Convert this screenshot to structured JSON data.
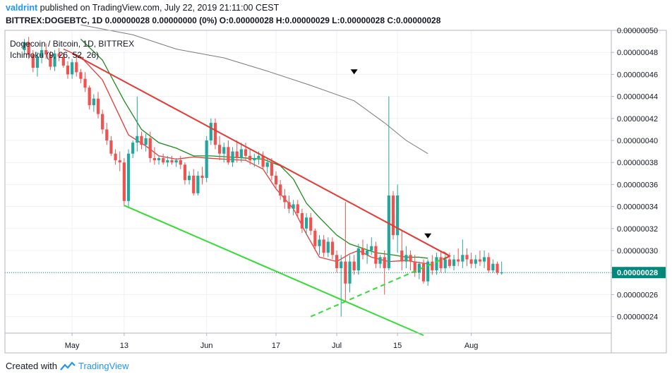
{
  "header": {
    "username": "valdrint",
    "published_text": "published on TradingView.com, July 22, 2019 21:11:00 CEST",
    "ohlc_text": "BITTREX:DOGEBTC, 1D  0.00000028  0.00000000 (0%)  O:0.00000028  H:0.00000029  L:0.00000028  C:0.00000028"
  },
  "footer": {
    "created_with": "Created with",
    "brand": "TradingView"
  },
  "colors": {
    "up": "#26a69a",
    "down": "#ef5350",
    "trend_red": "#e53935",
    "trend_green": "#33dd33",
    "ma_green": "#1b8a1b",
    "ma_red": "#e53935",
    "ma_gray": "#7a7a7a",
    "current_price_tag": "#00897b"
  },
  "chart_data": {
    "type": "candlestick",
    "title": "Dogecoin / Bitcoin, 1D, BITTREX",
    "indicator_label": "Ichimoku (9, 26, 52, 26)",
    "y_ticks": [
      "0.00000050",
      "0.00000048",
      "0.00000046",
      "0.00000044",
      "0.00000042",
      "0.00000040",
      "0.00000038",
      "0.00000036",
      "0.00000034",
      "0.00000032",
      "0.00000030",
      "0.00000028",
      "0.00000026",
      "0.00000024"
    ],
    "x_ticks": [
      "May",
      "13",
      "Jun",
      "17",
      "Jul",
      "15",
      "Aug"
    ],
    "current_price": "0.00000028",
    "ylim": [
      2.25e-07,
      5e-07
    ],
    "start_date": "2019-04-20",
    "candles": [
      [
        4.82e-07,
        4.92e-07,
        4.78e-07,
        4.89e-07
      ],
      [
        4.89e-07,
        4.94e-07,
        4.74e-07,
        4.78e-07
      ],
      [
        4.78e-07,
        4.82e-07,
        4.62e-07,
        4.66e-07
      ],
      [
        4.66e-07,
        4.8e-07,
        4.58e-07,
        4.76e-07
      ],
      [
        4.76e-07,
        4.86e-07,
        4.7e-07,
        4.82e-07
      ],
      [
        4.82e-07,
        4.88e-07,
        4.74e-07,
        4.78e-07
      ],
      [
        4.78e-07,
        4.81e-07,
        4.64e-07,
        4.67e-07
      ],
      [
        4.67e-07,
        4.82e-07,
        4.63e-07,
        4.79e-07
      ],
      [
        4.79e-07,
        4.84e-07,
        4.72e-07,
        4.76e-07
      ],
      [
        4.76e-07,
        4.8e-07,
        4.66e-07,
        4.68e-07
      ],
      [
        4.68e-07,
        4.72e-07,
        4.56e-07,
        4.6e-07
      ],
      [
        4.6e-07,
        4.74e-07,
        4.56e-07,
        4.71e-07
      ],
      [
        4.71e-07,
        4.76e-07,
        4.58e-07,
        4.62e-07
      ],
      [
        4.62e-07,
        4.65e-07,
        4.52e-07,
        4.56e-07
      ],
      [
        4.56e-07,
        4.62e-07,
        4.44e-07,
        4.48e-07
      ],
      [
        4.48e-07,
        4.5e-07,
        4.28e-07,
        4.32e-07
      ],
      [
        4.32e-07,
        4.42e-07,
        4.26e-07,
        4.38e-07
      ],
      [
        4.38e-07,
        4.44e-07,
        4.2e-07,
        4.24e-07
      ],
      [
        4.24e-07,
        4.28e-07,
        4.06e-07,
        4.1e-07
      ],
      [
        4.1e-07,
        4.16e-07,
        3.96e-07,
        4e-07
      ],
      [
        4e-07,
        4.04e-07,
        3.86e-07,
        3.88e-07
      ],
      [
        3.88e-07,
        3.92e-07,
        3.78e-07,
        3.82e-07
      ],
      [
        3.82e-07,
        3.9e-07,
        3.72e-07,
        3.8e-07
      ],
      [
        3.8e-07,
        3.84e-07,
        3.4e-07,
        3.45e-07
      ],
      [
        3.45e-07,
        3.92e-07,
        3.4e-07,
        3.88e-07
      ],
      [
        3.88e-07,
        4e-07,
        3.84e-07,
        3.98e-07
      ],
      [
        3.98e-07,
        4.4e-07,
        3.9e-07,
        4.04e-07
      ],
      [
        4.04e-07,
        4.08e-07,
        3.92e-07,
        3.96e-07
      ],
      [
        3.96e-07,
        4.06e-07,
        3.9e-07,
        4.02e-07
      ],
      [
        4.02e-07,
        4.08e-07,
        3.8e-07,
        3.84e-07
      ],
      [
        3.84e-07,
        3.94e-07,
        3.78e-07,
        3.82e-07
      ],
      [
        3.82e-07,
        3.86e-07,
        3.78e-07,
        3.84e-07
      ],
      [
        3.84e-07,
        3.88e-07,
        3.78e-07,
        3.8e-07
      ],
      [
        3.8e-07,
        3.86e-07,
        3.76e-07,
        3.82e-07
      ],
      [
        3.82e-07,
        3.86e-07,
        3.78e-07,
        3.8e-07
      ],
      [
        3.8e-07,
        3.84e-07,
        3.76e-07,
        3.82e-07
      ],
      [
        3.82e-07,
        3.86e-07,
        3.74e-07,
        3.78e-07
      ],
      [
        3.78e-07,
        3.8e-07,
        3.6e-07,
        3.64e-07
      ],
      [
        3.64e-07,
        3.72e-07,
        3.6e-07,
        3.68e-07
      ],
      [
        3.68e-07,
        3.74e-07,
        3.5e-07,
        3.52e-07
      ],
      [
        3.52e-07,
        3.72e-07,
        3.5e-07,
        3.68e-07
      ],
      [
        3.68e-07,
        3.76e-07,
        3.6e-07,
        3.66e-07
      ],
      [
        3.66e-07,
        4.04e-07,
        3.62e-07,
        4e-07
      ],
      [
        4e-07,
        4.2e-07,
        3.96e-07,
        4.16e-07
      ],
      [
        4.16e-07,
        4.2e-07,
        3.92e-07,
        3.96e-07
      ],
      [
        3.96e-07,
        4.04e-07,
        3.82e-07,
        3.88e-07
      ],
      [
        3.88e-07,
        3.98e-07,
        3.8e-07,
        3.94e-07
      ],
      [
        3.94e-07,
        4e-07,
        3.78e-07,
        3.8e-07
      ],
      [
        3.8e-07,
        3.94e-07,
        3.76e-07,
        3.9e-07
      ],
      [
        3.9e-07,
        4e-07,
        3.8e-07,
        3.84e-07
      ],
      [
        3.84e-07,
        3.98e-07,
        3.8e-07,
        3.92e-07
      ],
      [
        3.92e-07,
        3.98e-07,
        3.82e-07,
        3.86e-07
      ],
      [
        3.86e-07,
        3.92e-07,
        3.78e-07,
        3.82e-07
      ],
      [
        3.82e-07,
        3.88e-07,
        3.76e-07,
        3.84e-07
      ],
      [
        3.84e-07,
        3.9e-07,
        3.78e-07,
        3.86e-07
      ],
      [
        3.86e-07,
        3.9e-07,
        3.74e-07,
        3.76e-07
      ],
      [
        3.76e-07,
        3.84e-07,
        3.7e-07,
        3.8e-07
      ],
      [
        3.8e-07,
        3.84e-07,
        3.64e-07,
        3.68e-07
      ],
      [
        3.68e-07,
        3.72e-07,
        3.56e-07,
        3.6e-07
      ],
      [
        3.6e-07,
        3.64e-07,
        3.46e-07,
        3.5e-07
      ],
      [
        3.5e-07,
        3.56e-07,
        3.38e-07,
        3.44e-07
      ],
      [
        3.44e-07,
        3.5e-07,
        3.34e-07,
        3.38e-07
      ],
      [
        3.38e-07,
        3.46e-07,
        3.32e-07,
        3.42e-07
      ],
      [
        3.42e-07,
        3.46e-07,
        3.3e-07,
        3.34e-07
      ],
      [
        3.34e-07,
        3.38e-07,
        3.16e-07,
        3.2e-07
      ],
      [
        3.2e-07,
        3.34e-07,
        3.14e-07,
        3.3e-07
      ],
      [
        3.3e-07,
        3.34e-07,
        3.14e-07,
        3.18e-07
      ],
      [
        3.18e-07,
        3.2e-07,
        3e-07,
        3.04e-07
      ],
      [
        3.04e-07,
        3.14e-07,
        2.96e-07,
        3.1e-07
      ],
      [
        3.1e-07,
        3.14e-07,
        2.94e-07,
        2.98e-07
      ],
      [
        2.98e-07,
        3.12e-07,
        2.94e-07,
        3.08e-07
      ],
      [
        3.08e-07,
        3.12e-07,
        2.92e-07,
        2.96e-07
      ],
      [
        2.96e-07,
        3e-07,
        2.8e-07,
        2.84e-07
      ],
      [
        2.84e-07,
        2.96e-07,
        2.4e-07,
        2.9e-07
      ],
      [
        2.9e-07,
        3.44e-07,
        2.54e-07,
        2.7e-07
      ],
      [
        2.7e-07,
        2.96e-07,
        2.62e-07,
        2.9e-07
      ],
      [
        2.9e-07,
        2.96e-07,
        2.78e-07,
        2.82e-07
      ],
      [
        2.82e-07,
        3.06e-07,
        2.78e-07,
        3.02e-07
      ],
      [
        3.02e-07,
        3.1e-07,
        2.92e-07,
        2.96e-07
      ],
      [
        2.96e-07,
        3.06e-07,
        2.88e-07,
        3e-07
      ],
      [
        3e-07,
        3.12e-07,
        2.96e-07,
        3.04e-07
      ],
      [
        3.04e-07,
        3.08e-07,
        2.84e-07,
        2.88e-07
      ],
      [
        2.88e-07,
        2.96e-07,
        2.84e-07,
        2.94e-07
      ],
      [
        2.94e-07,
        3e-07,
        2.6e-07,
        2.84e-07
      ],
      [
        2.84e-07,
        4.4e-07,
        2.82e-07,
        3.5e-07
      ],
      [
        3.5e-07,
        3.54e-07,
        3.1e-07,
        3.14e-07
      ],
      [
        3.14e-07,
        3.6e-07,
        2.98e-07,
        3.5e-07
      ],
      [
        3e-07,
        3.18e-07,
        2.82e-07,
        2.9e-07
      ],
      [
        2.9e-07,
        3.04e-07,
        2.84e-07,
        2.96e-07
      ],
      [
        2.96e-07,
        3e-07,
        2.82e-07,
        2.9e-07
      ],
      [
        2.9e-07,
        2.96e-07,
        2.76e-07,
        2.8e-07
      ],
      [
        2.8e-07,
        2.9e-07,
        2.74e-07,
        2.88e-07
      ],
      [
        2.88e-07,
        2.92e-07,
        2.7e-07,
        2.72e-07
      ],
      [
        2.72e-07,
        2.92e-07,
        2.68e-07,
        2.9e-07
      ],
      [
        2.9e-07,
        2.96e-07,
        2.78e-07,
        2.82e-07
      ],
      [
        2.82e-07,
        2.98e-07,
        2.78e-07,
        2.94e-07
      ],
      [
        2.94e-07,
        3e-07,
        2.8e-07,
        2.84e-07
      ],
      [
        2.84e-07,
        2.96e-07,
        2.8e-07,
        2.92e-07
      ],
      [
        2.92e-07,
        2.98e-07,
        2.84e-07,
        2.86e-07
      ],
      [
        2.86e-07,
        2.96e-07,
        2.82e-07,
        2.92e-07
      ],
      [
        2.92e-07,
        3.02e-07,
        2.86e-07,
        2.9e-07
      ],
      [
        2.9e-07,
        3.1e-07,
        2.84e-07,
        2.96e-07
      ],
      [
        2.96e-07,
        3.02e-07,
        2.86e-07,
        2.92e-07
      ],
      [
        2.92e-07,
        2.98e-07,
        2.84e-07,
        2.88e-07
      ],
      [
        2.88e-07,
        2.96e-07,
        2.84e-07,
        2.92e-07
      ],
      [
        2.92e-07,
        3e-07,
        2.86e-07,
        2.9e-07
      ],
      [
        2.9e-07,
        3e-07,
        2.84e-07,
        2.94e-07
      ],
      [
        2.94e-07,
        2.98e-07,
        2.8e-07,
        2.82e-07
      ],
      [
        2.82e-07,
        2.92e-07,
        2.8e-07,
        2.88e-07
      ],
      [
        2.88e-07,
        2.9e-07,
        2.78e-07,
        2.8e-07
      ],
      [
        2.8e-07,
        2.9e-07,
        2.78e-07,
        2.8e-07
      ]
    ],
    "trendlines": [
      {
        "name": "descending-resistance",
        "color": "#e53935",
        "style": "solid",
        "from": [
          "2019-05-01",
          4.79e-07
        ],
        "to": [
          "2019-07-27",
          2.95e-07
        ]
      },
      {
        "name": "descending-support",
        "color": "#33dd33",
        "style": "solid",
        "from": [
          "2019-05-13",
          3.41e-07
        ],
        "to": [
          "2019-07-21",
          2.23e-07
        ]
      },
      {
        "name": "ascending-support",
        "color": "#33dd33",
        "style": "dashed",
        "from": [
          "2019-06-25",
          2.4e-07
        ],
        "to": [
          "2019-07-27",
          2.95e-07
        ]
      }
    ],
    "moving_averages": [
      {
        "name": "short",
        "color": "#e53935",
        "points": [
          [
            "2019-04-29",
            4.83e-07
          ],
          [
            "2019-05-03",
            4.76e-07
          ],
          [
            "2019-05-08",
            4.55e-07
          ],
          [
            "2019-05-11",
            4.3e-07
          ],
          [
            "2019-05-14",
            4.05e-07
          ],
          [
            "2019-05-18",
            3.95e-07
          ],
          [
            "2019-05-21",
            3.86e-07
          ],
          [
            "2019-05-25",
            3.83e-07
          ],
          [
            "2019-05-29",
            3.85e-07
          ],
          [
            "2019-06-01",
            3.84e-07
          ],
          [
            "2019-06-05",
            3.83e-07
          ],
          [
            "2019-06-10",
            3.82e-07
          ],
          [
            "2019-06-14",
            3.74e-07
          ],
          [
            "2019-06-17",
            3.56e-07
          ],
          [
            "2019-06-21",
            3.38e-07
          ],
          [
            "2019-06-24",
            3.15e-07
          ],
          [
            "2019-06-27",
            2.94e-07
          ],
          [
            "2019-07-01",
            2.9e-07
          ],
          [
            "2019-07-04",
            2.97e-07
          ],
          [
            "2019-07-06",
            3e-07
          ],
          [
            "2019-07-09",
            2.94e-07
          ],
          [
            "2019-07-13",
            2.9e-07
          ],
          [
            "2019-07-17",
            2.91e-07
          ],
          [
            "2019-07-20",
            2.89e-07
          ],
          [
            "2019-07-22",
            2.88e-07
          ]
        ]
      },
      {
        "name": "medium",
        "color": "#1b8a1b",
        "points": [
          [
            "2019-05-03",
            4.92e-07
          ],
          [
            "2019-05-08",
            4.73e-07
          ],
          [
            "2019-05-13",
            4.36e-07
          ],
          [
            "2019-05-17",
            4.1e-07
          ],
          [
            "2019-05-21",
            3.98e-07
          ],
          [
            "2019-05-25",
            3.93e-07
          ],
          [
            "2019-05-29",
            3.86e-07
          ],
          [
            "2019-06-02",
            3.86e-07
          ],
          [
            "2019-06-06",
            3.85e-07
          ],
          [
            "2019-06-10",
            3.84e-07
          ],
          [
            "2019-06-14",
            3.83e-07
          ],
          [
            "2019-06-18",
            3.77e-07
          ],
          [
            "2019-06-21",
            3.65e-07
          ],
          [
            "2019-06-24",
            3.43e-07
          ],
          [
            "2019-06-27",
            3.3e-07
          ],
          [
            "2019-07-01",
            3.14e-07
          ],
          [
            "2019-07-04",
            3.06e-07
          ],
          [
            "2019-07-07",
            3.02e-07
          ],
          [
            "2019-07-10",
            2.98e-07
          ],
          [
            "2019-07-14",
            2.96e-07
          ],
          [
            "2019-07-17",
            2.94e-07
          ],
          [
            "2019-07-20",
            2.94e-07
          ],
          [
            "2019-07-22",
            2.93e-07
          ]
        ]
      },
      {
        "name": "long",
        "color": "#7a7a7a",
        "points": [
          [
            "2019-05-03",
            5.05e-07
          ],
          [
            "2019-05-15",
            4.96e-07
          ],
          [
            "2019-05-25",
            4.83e-07
          ],
          [
            "2019-06-05",
            4.75e-07
          ],
          [
            "2019-06-15",
            4.63e-07
          ],
          [
            "2019-06-25",
            4.5e-07
          ],
          [
            "2019-07-05",
            4.36e-07
          ],
          [
            "2019-07-12",
            4.16e-07
          ],
          [
            "2019-07-17",
            4e-07
          ],
          [
            "2019-07-22",
            3.88e-07
          ]
        ]
      }
    ],
    "markers": [
      {
        "date": "2019-07-05",
        "price": 4.62e-07,
        "shape": "down-triangle"
      },
      {
        "date": "2019-07-22",
        "price": 3.13e-07,
        "shape": "down-triangle"
      }
    ]
  }
}
